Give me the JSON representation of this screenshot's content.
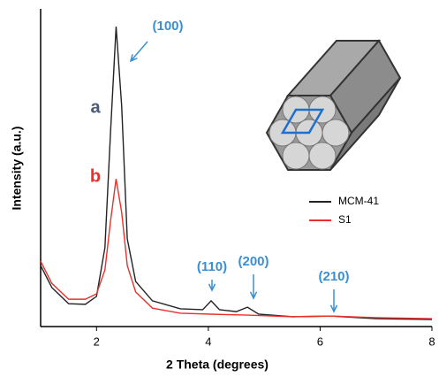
{
  "chart_data": {
    "type": "line",
    "xlabel": "2 Theta (degrees)",
    "ylabel": "Intensity (a.u.)",
    "xlim": [
      1,
      8
    ],
    "xticks": [
      2,
      4,
      6,
      8
    ],
    "ylim": [
      0,
      100
    ],
    "grid": false,
    "legend": "right",
    "annotations": [
      "(100)",
      "(110)",
      "(200)",
      "(210)"
    ],
    "series": [
      {
        "name": "MCM-41",
        "tag": "a",
        "color": "#222222",
        "x": [
          1.0,
          1.2,
          1.5,
          1.8,
          2.0,
          2.15,
          2.25,
          2.35,
          2.45,
          2.55,
          2.7,
          3.0,
          3.5,
          3.9,
          4.05,
          4.2,
          4.5,
          4.7,
          4.9,
          5.5,
          6.2,
          7.0,
          8.0
        ],
        "values": [
          19.2,
          12.3,
          7.2,
          7.0,
          9.5,
          24.8,
          61,
          94.4,
          69.4,
          27.6,
          14.2,
          8.1,
          5.6,
          5.3,
          8.1,
          5.3,
          4.7,
          6.1,
          3.9,
          3.1,
          3.3,
          2.5,
          2.2
        ]
      },
      {
        "name": "S1",
        "tag": "b",
        "color": "#e8312f",
        "x": [
          1.0,
          1.2,
          1.5,
          1.8,
          2.0,
          2.15,
          2.25,
          2.35,
          2.45,
          2.55,
          2.7,
          3.0,
          3.5,
          4.05,
          4.7,
          5.5,
          6.2,
          7.0,
          8.0
        ],
        "values": [
          20.6,
          13.6,
          8.6,
          8.6,
          10.3,
          17.8,
          33.1,
          46.5,
          35.9,
          19.2,
          10.9,
          5.8,
          4.2,
          3.9,
          3.6,
          3.1,
          3.3,
          2.8,
          2.5
        ]
      }
    ]
  }
}
